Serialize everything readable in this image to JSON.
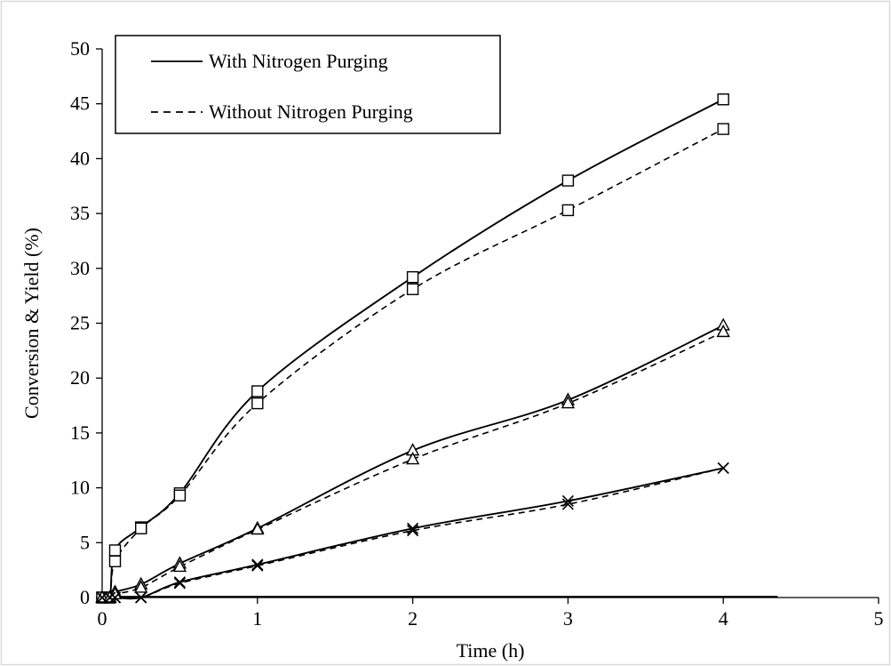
{
  "chart_data": {
    "type": "line",
    "title": "",
    "xlabel": "Time (h)",
    "ylabel": "Conversion & Yield (%)",
    "xlim": [
      0,
      5
    ],
    "ylim": [
      0,
      50
    ],
    "x_ticks": [
      "0",
      "1",
      "2",
      "3",
      "4",
      "5"
    ],
    "y_ticks": [
      "0",
      "5",
      "10",
      "15",
      "20",
      "25",
      "30",
      "35",
      "40",
      "45",
      "50"
    ],
    "grid": false,
    "legend_position": "top-left",
    "legend": [
      {
        "label": "With Nitrogen Purging",
        "style": "solid"
      },
      {
        "label": "Without Nitrogen Purging",
        "style": "dashed"
      }
    ],
    "series": [
      {
        "condition": "With Nitrogen Purging",
        "marker": "square",
        "style": "solid",
        "points": [
          [
            0,
            0
          ],
          [
            0.05,
            0
          ],
          [
            0.083,
            4.3
          ],
          [
            0.25,
            6.4
          ],
          [
            0.5,
            9.5
          ],
          [
            1,
            18.8
          ],
          [
            2,
            29.2
          ],
          [
            3,
            38
          ],
          [
            4,
            45.4
          ]
        ]
      },
      {
        "condition": "Without Nitrogen Purging",
        "marker": "square",
        "style": "dashed",
        "points": [
          [
            0,
            0
          ],
          [
            0.05,
            0
          ],
          [
            0.083,
            3.3
          ],
          [
            0.25,
            6.3
          ],
          [
            0.5,
            9.3
          ],
          [
            1,
            17.7
          ],
          [
            2,
            28.1
          ],
          [
            3,
            35.3
          ],
          [
            4,
            42.7
          ]
        ]
      },
      {
        "condition": "With Nitrogen Purging",
        "marker": "triangle",
        "style": "solid",
        "points": [
          [
            0,
            0
          ],
          [
            0.05,
            0
          ],
          [
            0.083,
            0.5
          ],
          [
            0.25,
            1.2
          ],
          [
            0.5,
            3.1
          ],
          [
            1,
            6.3
          ],
          [
            2,
            13.4
          ],
          [
            3,
            18
          ],
          [
            4,
            24.8
          ]
        ]
      },
      {
        "condition": "Without Nitrogen Purging",
        "marker": "triangle",
        "style": "dashed",
        "points": [
          [
            0,
            0
          ],
          [
            0.05,
            0
          ],
          [
            0.083,
            0.3
          ],
          [
            0.25,
            0.9
          ],
          [
            0.5,
            2.8
          ],
          [
            1,
            6.2
          ],
          [
            2,
            12.6
          ],
          [
            3,
            17.7
          ],
          [
            4,
            24.2
          ]
        ]
      },
      {
        "condition": "With Nitrogen Purging",
        "marker": "x",
        "style": "solid",
        "points": [
          [
            0,
            0
          ],
          [
            0.05,
            0
          ],
          [
            0.083,
            0
          ],
          [
            0.25,
            0
          ],
          [
            0.5,
            1.4
          ],
          [
            1,
            3
          ],
          [
            2,
            6.3
          ],
          [
            3,
            8.8
          ],
          [
            4,
            11.8
          ]
        ]
      },
      {
        "condition": "Without Nitrogen Purging",
        "marker": "x",
        "style": "dashed",
        "points": [
          [
            0,
            0
          ],
          [
            0.05,
            0
          ],
          [
            0.083,
            0
          ],
          [
            0.25,
            0
          ],
          [
            0.5,
            1.3
          ],
          [
            1,
            2.9
          ],
          [
            2,
            6.1
          ],
          [
            3,
            8.5
          ],
          [
            4,
            11.8
          ]
        ]
      }
    ],
    "baseline_line": {
      "style": "solid",
      "points": [
        [
          0,
          0
        ],
        [
          4.35,
          0
        ]
      ]
    }
  }
}
